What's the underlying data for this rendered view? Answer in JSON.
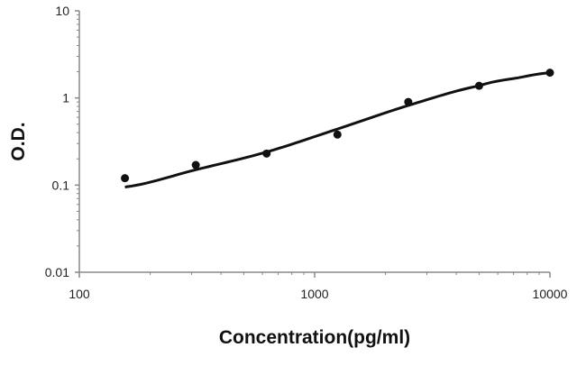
{
  "chart_data": {
    "type": "scatter",
    "title": "",
    "xlabel": "Concentration(pg/ml)",
    "ylabel": "O.D.",
    "x_scale": "log",
    "y_scale": "log",
    "xlim": [
      100,
      10000
    ],
    "ylim": [
      0.01,
      10
    ],
    "x_ticks": [
      "100",
      "1000",
      "10000"
    ],
    "y_ticks": [
      "0.01",
      "0.1",
      "1",
      "10"
    ],
    "grid": false,
    "legend": "none",
    "series": [
      {
        "points": [
          {
            "x": 156.25,
            "y": 0.12
          },
          {
            "x": 312.5,
            "y": 0.17
          },
          {
            "x": 625,
            "y": 0.23
          },
          {
            "x": 1250,
            "y": 0.38
          },
          {
            "x": 2500,
            "y": 0.9
          },
          {
            "x": 5000,
            "y": 1.38
          },
          {
            "x": 10000,
            "y": 1.95
          }
        ],
        "color": "#111111"
      }
    ],
    "fit_curve": {
      "type": "4PL",
      "color": "#111111",
      "points": [
        {
          "x": 156.25,
          "y": 0.095
        },
        {
          "x": 312.5,
          "y": 0.15
        },
        {
          "x": 625,
          "y": 0.24
        },
        {
          "x": 1250,
          "y": 0.44
        },
        {
          "x": 2500,
          "y": 0.82
        },
        {
          "x": 5000,
          "y": 1.38
        },
        {
          "x": 7500,
          "y": 1.72
        },
        {
          "x": 10000,
          "y": 1.95
        }
      ]
    }
  }
}
